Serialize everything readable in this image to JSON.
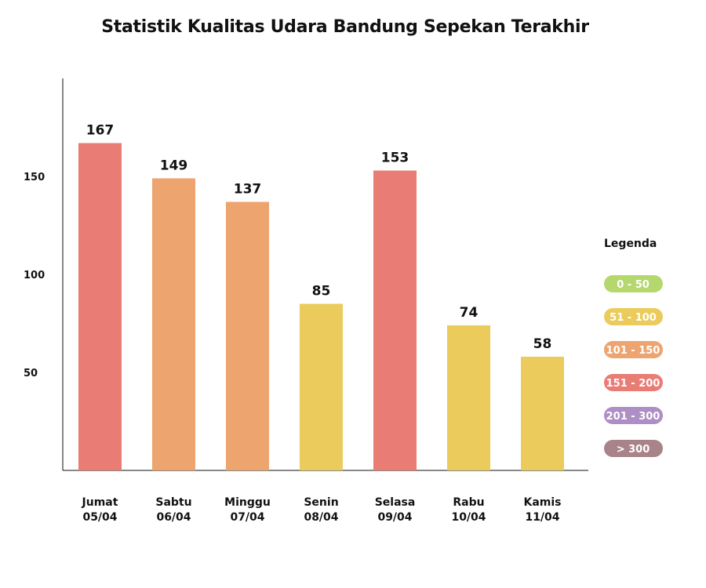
{
  "chart_data": {
    "type": "bar",
    "title": "Statistik Kualitas Udara Bandung Sepekan Terakhir",
    "categories": [
      [
        "Jumat",
        "05/04"
      ],
      [
        "Sabtu",
        "06/04"
      ],
      [
        "Minggu",
        "07/04"
      ],
      [
        "Senin",
        "08/04"
      ],
      [
        "Selasa",
        "09/04"
      ],
      [
        "Rabu",
        "10/04"
      ],
      [
        "Kamis",
        "11/04"
      ]
    ],
    "values": [
      167,
      149,
      137,
      85,
      153,
      74,
      58
    ],
    "ylim": [
      0,
      200
    ],
    "yticks": [
      50,
      100,
      150
    ],
    "grid": false,
    "legend": {
      "title": "Legenda",
      "placement": "right",
      "items": [
        {
          "label": "0 - 50",
          "color": "#b5d86e"
        },
        {
          "label": "51 - 100",
          "color": "#ebcb5c"
        },
        {
          "label": "101 - 150",
          "color": "#eda46f"
        },
        {
          "label": "151 - 200",
          "color": "#e97d76"
        },
        {
          "label": "201 - 300",
          "color": "#ad8ec5"
        },
        {
          "label": "> 300",
          "color": "#a8848a"
        }
      ]
    },
    "bar_colors": [
      "#e97d76",
      "#eda46f",
      "#eda46f",
      "#ebcb5c",
      "#e97d76",
      "#ebcb5c",
      "#ebcb5c"
    ]
  }
}
